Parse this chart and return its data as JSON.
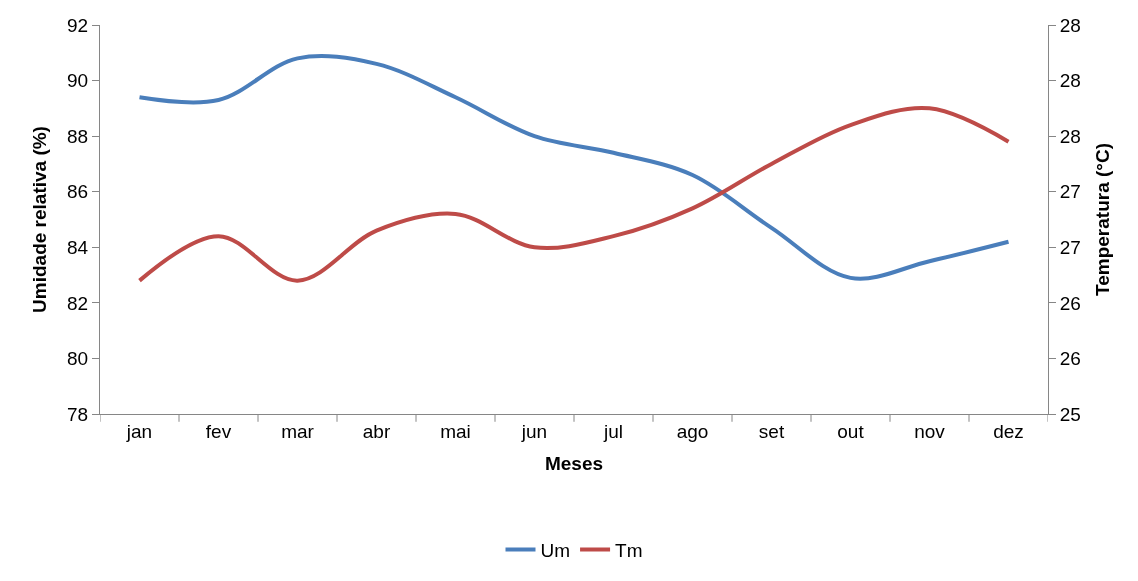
{
  "chart_data": {
    "type": "line",
    "xlabel": "Meses",
    "ylabel": "Umidade relativa (%)",
    "y2label": "Temperatura (°C)",
    "categories": [
      "jan",
      "fev",
      "mar",
      "abr",
      "mai",
      "jun",
      "jul",
      "ago",
      "set",
      "out",
      "nov",
      "dez"
    ],
    "series": [
      {
        "name": "Um",
        "color": "#4a7ebb",
        "values": [
          89.4,
          89.3,
          90.8,
          90.6,
          89.4,
          88.0,
          87.4,
          86.6,
          84.7,
          82.9,
          83.5,
          84.2
        ]
      },
      {
        "name": "Tm",
        "color": "#be4b48",
        "axis": "y2",
        "values": [
          26.2,
          26.6,
          26.2,
          26.65,
          26.8,
          26.5,
          26.6,
          26.85,
          27.25,
          27.6,
          27.75,
          27.45
        ]
      }
    ],
    "ylim": [
      78,
      92
    ],
    "yticks": [
      78,
      80,
      82,
      84,
      86,
      88,
      90,
      92
    ],
    "y2lim": [
      25,
      28.5
    ],
    "y2ticks": [
      25,
      {
        "value": 25.5,
        "label": "26"
      },
      26,
      {
        "value": 26.5,
        "label": "27"
      },
      27,
      {
        "value": 27.5,
        "label": "28"
      },
      28,
      {
        "value": 28.5,
        "label": "28"
      }
    ],
    "legend": "bottom",
    "marker": "none",
    "line_style": "solid"
  }
}
